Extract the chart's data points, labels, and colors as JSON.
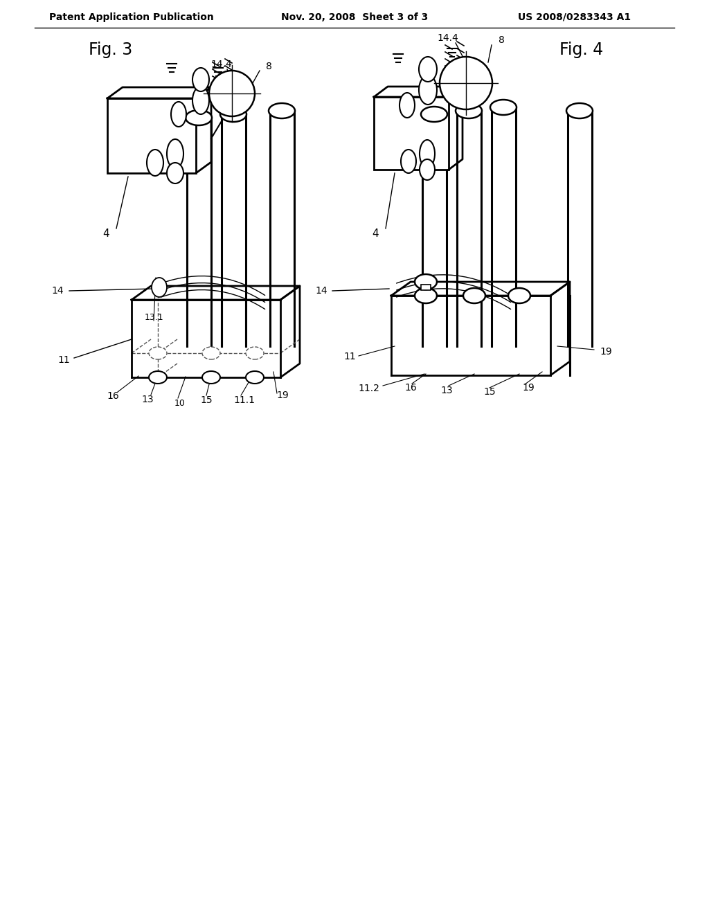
{
  "header_left": "Patent Application Publication",
  "header_mid": "Nov. 20, 2008  Sheet 3 of 3",
  "header_right": "US 2008/0283343 A1",
  "fig3_label": "Fig. 3",
  "fig4_label": "Fig. 4",
  "background_color": "#ffffff",
  "line_color": "#000000",
  "dashed_color": "#555555"
}
